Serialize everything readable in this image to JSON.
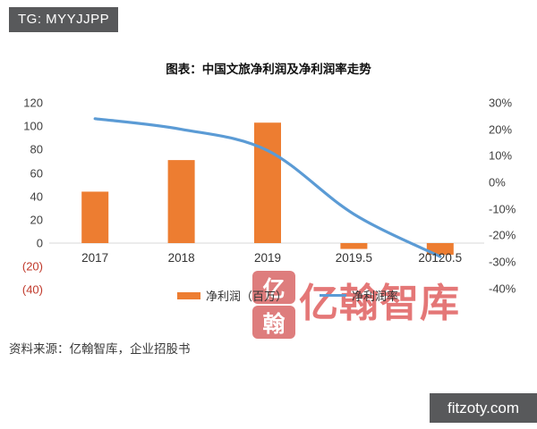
{
  "badge": {
    "text": "TG: MYYJJPP"
  },
  "chart_data": {
    "type": "bar",
    "title": "图表：中国文旅净利润及净利润率走势",
    "categories": [
      "2017",
      "2018",
      "2019",
      "2019.5",
      "20120.5"
    ],
    "series": [
      {
        "name": "净利润（百万）",
        "type": "bar",
        "color": "#ED7D31",
        "axis": "left",
        "values": [
          44,
          71,
          103,
          -5,
          -10
        ]
      },
      {
        "name": "净利润率",
        "type": "line",
        "color": "#5B9BD5",
        "axis": "right",
        "values": [
          24,
          20,
          12,
          -12,
          -28
        ]
      }
    ],
    "left_axis": {
      "labels": [
        "120",
        "100",
        "80",
        "60",
        "40",
        "20",
        "0",
        "(20)",
        "(40)"
      ],
      "ticks": [
        120,
        100,
        80,
        60,
        40,
        20,
        0,
        -20,
        -40
      ],
      "range": [
        -40,
        120
      ],
      "negative_color": "#C0392B"
    },
    "right_axis": {
      "labels": [
        "30%",
        "20%",
        "10%",
        "0%",
        "-10%",
        "-20%",
        "-30%",
        "-40%"
      ],
      "ticks": [
        30,
        20,
        10,
        0,
        -10,
        -20,
        -30,
        -40
      ],
      "range": [
        -40,
        30
      ],
      "unit": "%"
    },
    "legend_position": "bottom",
    "grid": false,
    "axis_line_color": "#D9D9D9"
  },
  "watermark": {
    "seal_chars": [
      "亿",
      "翰"
    ],
    "text": "亿翰智库",
    "color": "#DD5555"
  },
  "footer": {
    "source": "资料来源：亿翰智库，企业招股书",
    "site": "fitzoty.com"
  }
}
